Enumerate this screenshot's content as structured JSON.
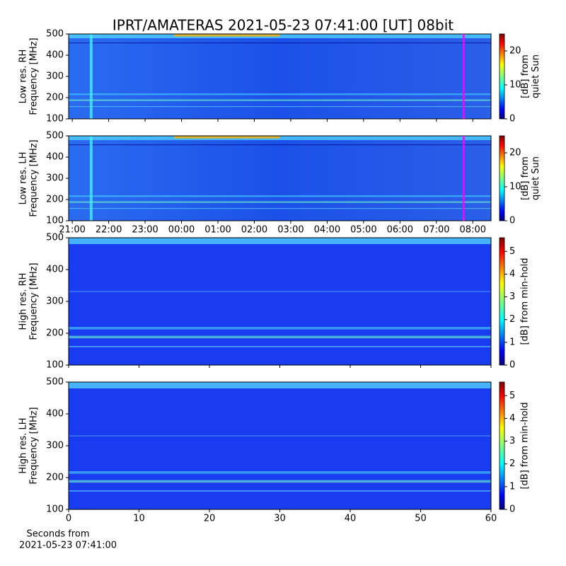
{
  "chart_data": [
    {
      "type": "spectrogram",
      "title": "IPRT/AMATERAS 2021-05-23 07:41:00 [UT]   08bit",
      "ylabel": [
        "Low res. RH",
        "Frequency [MHz]"
      ],
      "xlim": [
        20.9,
        32.5
      ],
      "ylim": [
        100,
        500
      ],
      "yticks": [
        100,
        200,
        300,
        400,
        500
      ],
      "colormap": "jet",
      "clim": [
        0,
        25
      ],
      "cticks": [
        0,
        10,
        20
      ],
      "clabel": [
        "[dB] from",
        "quiet Sun"
      ],
      "vline": 31.75,
      "vline_color": "#ff00ff"
    },
    {
      "type": "spectrogram",
      "ylabel": [
        "Low res. LH",
        "Frequency [MHz]"
      ],
      "xlim": [
        20.9,
        32.5
      ],
      "ylim": [
        100,
        500
      ],
      "yticks": [
        100,
        200,
        300,
        400,
        500
      ],
      "xticks": [
        {
          "value": 21,
          "label": "21:00"
        },
        {
          "value": 22,
          "label": "22:00"
        },
        {
          "value": 23,
          "label": "23:00"
        },
        {
          "value": 24,
          "label": "00:00"
        },
        {
          "value": 25,
          "label": "01:00"
        },
        {
          "value": 26,
          "label": "02:00"
        },
        {
          "value": 27,
          "label": "03:00"
        },
        {
          "value": 28,
          "label": "04:00"
        },
        {
          "value": 29,
          "label": "05:00"
        },
        {
          "value": 30,
          "label": "06:00"
        },
        {
          "value": 31,
          "label": "07:00"
        },
        {
          "value": 32,
          "label": "08:00"
        }
      ],
      "colormap": "jet",
      "clim": [
        0,
        25
      ],
      "cticks": [
        0,
        10,
        20
      ],
      "clabel": [
        "[dB] from",
        "quiet Sun"
      ],
      "vline": 31.75,
      "vline_color": "#ff00ff"
    },
    {
      "type": "spectrogram",
      "ylabel": [
        "High res. RH",
        "Frequency [MHz]"
      ],
      "xlim": [
        0,
        60
      ],
      "ylim": [
        100,
        500
      ],
      "yticks": [
        100,
        200,
        300,
        400,
        500
      ],
      "colormap": "jet",
      "clim": [
        0,
        5.6
      ],
      "cticks": [
        0,
        1,
        2,
        3,
        4,
        5
      ],
      "clabel": [
        "[dB] from min-hold"
      ]
    },
    {
      "type": "spectrogram",
      "ylabel": [
        "High res. LH",
        "Frequency [MHz]"
      ],
      "xlim": [
        0,
        60
      ],
      "ylim": [
        100,
        500
      ],
      "yticks": [
        100,
        200,
        300,
        400,
        500
      ],
      "xticks": [
        0,
        10,
        20,
        30,
        40,
        50,
        60
      ],
      "xlabel": [
        "Seconds from",
        "2021-05-23 07:41:00"
      ],
      "colormap": "jet",
      "clim": [
        0,
        5.6
      ],
      "cticks": [
        0,
        1,
        2,
        3,
        4,
        5
      ],
      "clabel": [
        "[dB] from min-hold"
      ]
    }
  ]
}
